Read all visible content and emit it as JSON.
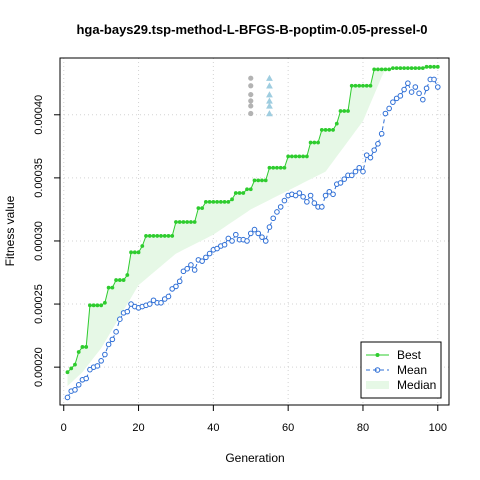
{
  "chart_data": {
    "type": "line",
    "title": "hga-bays29.tsp-method-L-BFGS-B-poptim-0.05-pressel-0",
    "xlabel": "Generation",
    "ylabel": "Fitness value",
    "xlim": [
      -1,
      103
    ],
    "ylim": [
      0.00017,
      0.000445
    ],
    "x_ticks": [
      0,
      20,
      40,
      60,
      80,
      100
    ],
    "y_ticks": [
      0.0002,
      0.00025,
      0.0003,
      0.00035,
      0.0004
    ],
    "y_tick_labels": [
      "0.00020",
      "0.00025",
      "0.00030",
      "0.00035",
      "0.00040"
    ],
    "grid": true,
    "legend_position": "bottom-right",
    "colors": {
      "best": "#2ecc2e",
      "mean": "#2f6fd6",
      "median_fill": "#e6f8e6",
      "outlier_gray": "#b3b3b3",
      "outlier_blue": "#9fcde0"
    },
    "series": [
      {
        "name": "Best",
        "x": [
          1,
          2,
          3,
          4,
          5,
          6,
          7,
          8,
          9,
          10,
          11,
          12,
          13,
          14,
          15,
          16,
          17,
          18,
          19,
          20,
          21,
          22,
          23,
          24,
          25,
          26,
          27,
          28,
          29,
          30,
          31,
          32,
          33,
          34,
          35,
          36,
          37,
          38,
          39,
          40,
          41,
          42,
          43,
          44,
          45,
          46,
          47,
          48,
          49,
          50,
          51,
          52,
          53,
          54,
          55,
          56,
          57,
          58,
          59,
          60,
          61,
          62,
          63,
          64,
          65,
          66,
          67,
          68,
          69,
          70,
          71,
          72,
          73,
          74,
          75,
          76,
          77,
          78,
          79,
          80,
          81,
          82,
          83,
          84,
          85,
          86,
          87,
          88,
          89,
          90,
          91,
          92,
          93,
          94,
          95,
          96,
          97,
          98,
          99,
          100
        ],
        "values": [
          0.000196,
          0.000199,
          0.000202,
          0.000212,
          0.000216,
          0.000216,
          0.000249,
          0.000249,
          0.000249,
          0.000249,
          0.000251,
          0.000263,
          0.000263,
          0.000269,
          0.000269,
          0.000269,
          0.000273,
          0.000291,
          0.000291,
          0.000291,
          0.000296,
          0.000304,
          0.000304,
          0.000304,
          0.000304,
          0.000304,
          0.000304,
          0.000304,
          0.000304,
          0.000315,
          0.000315,
          0.000315,
          0.000315,
          0.000315,
          0.000315,
          0.000326,
          0.000326,
          0.000331,
          0.000331,
          0.000331,
          0.000331,
          0.000331,
          0.000331,
          0.000331,
          0.000333,
          0.000338,
          0.000338,
          0.000338,
          0.000341,
          0.000341,
          0.000348,
          0.000348,
          0.000348,
          0.000348,
          0.000358,
          0.000358,
          0.000358,
          0.000358,
          0.000358,
          0.000367,
          0.000367,
          0.000367,
          0.000367,
          0.000367,
          0.000367,
          0.000378,
          0.000378,
          0.000378,
          0.000388,
          0.000388,
          0.000388,
          0.000388,
          0.000393,
          0.000403,
          0.000403,
          0.000403,
          0.000423,
          0.000423,
          0.000423,
          0.000423,
          0.000423,
          0.000423,
          0.000436,
          0.000436,
          0.000436,
          0.000436,
          0.000436,
          0.000437,
          0.000437,
          0.000437,
          0.000437,
          0.000437,
          0.000437,
          0.000437,
          0.000437,
          0.000437,
          0.000438,
          0.000438,
          0.000438,
          0.000438
        ]
      },
      {
        "name": "Mean",
        "x": [
          1,
          2,
          3,
          4,
          5,
          6,
          7,
          8,
          9,
          10,
          11,
          12,
          13,
          14,
          15,
          16,
          17,
          18,
          19,
          20,
          21,
          22,
          23,
          24,
          25,
          26,
          27,
          28,
          29,
          30,
          31,
          32,
          33,
          34,
          35,
          36,
          37,
          38,
          39,
          40,
          41,
          42,
          43,
          44,
          45,
          46,
          47,
          48,
          49,
          50,
          51,
          52,
          53,
          54,
          55,
          56,
          57,
          58,
          59,
          60,
          61,
          62,
          63,
          64,
          65,
          66,
          67,
          68,
          69,
          70,
          71,
          72,
          73,
          74,
          75,
          76,
          77,
          78,
          79,
          80,
          81,
          82,
          83,
          84,
          85,
          86,
          87,
          88,
          89,
          90,
          91,
          92,
          93,
          94,
          95,
          96,
          97,
          98,
          99,
          100
        ],
        "values": [
          0.000176,
          0.000181,
          0.000182,
          0.000186,
          0.00019,
          0.000191,
          0.000198,
          0.0002,
          0.000201,
          0.000205,
          0.00021,
          0.000218,
          0.000222,
          0.000228,
          0.000238,
          0.000243,
          0.000244,
          0.00025,
          0.000248,
          0.000247,
          0.000248,
          0.000249,
          0.00025,
          0.000253,
          0.000251,
          0.000251,
          0.000254,
          0.000256,
          0.000262,
          0.000264,
          0.000268,
          0.000276,
          0.000278,
          0.000281,
          0.000277,
          0.000285,
          0.000284,
          0.000287,
          0.00029,
          0.000293,
          0.000294,
          0.000296,
          0.000297,
          0.000302,
          0.0003,
          0.000305,
          0.000301,
          0.000301,
          0.0003,
          0.000306,
          0.000309,
          0.000306,
          0.000303,
          0.0003,
          0.000311,
          0.000318,
          0.000323,
          0.000327,
          0.000332,
          0.000336,
          0.000337,
          0.000336,
          0.000338,
          0.000335,
          0.000331,
          0.000336,
          0.00033,
          0.000327,
          0.000327,
          0.000336,
          0.000339,
          0.000337,
          0.000345,
          0.000346,
          0.000349,
          0.000352,
          0.000352,
          0.000355,
          0.000358,
          0.000355,
          0.000368,
          0.000366,
          0.000372,
          0.000377,
          0.000385,
          0.000401,
          0.000405,
          0.00041,
          0.000413,
          0.000415,
          0.00042,
          0.000425,
          0.000418,
          0.000422,
          0.000417,
          0.000412,
          0.000421,
          0.000428,
          0.000428,
          0.000422
        ]
      },
      {
        "name": "Median",
        "x": [
          1,
          5,
          10,
          20,
          30,
          40,
          50,
          60,
          70,
          80,
          85,
          86,
          90,
          95,
          100
        ],
        "values": [
          0.000185,
          0.000196,
          0.000215,
          0.000265,
          0.00029,
          0.000305,
          0.000325,
          0.00034,
          0.000355,
          0.000395,
          0.00043,
          0.000437,
          0.000437,
          0.000437,
          0.000438
        ]
      }
    ],
    "outliers": [
      {
        "name": "gray",
        "x": 50,
        "values": [
          0.000429,
          0.000423,
          0.000416,
          0.000411,
          0.000407,
          0.000401
        ]
      },
      {
        "name": "blue",
        "x": 55,
        "values": [
          0.000429,
          0.000423,
          0.000416,
          0.000411,
          0.000407,
          0.000401
        ]
      }
    ]
  }
}
